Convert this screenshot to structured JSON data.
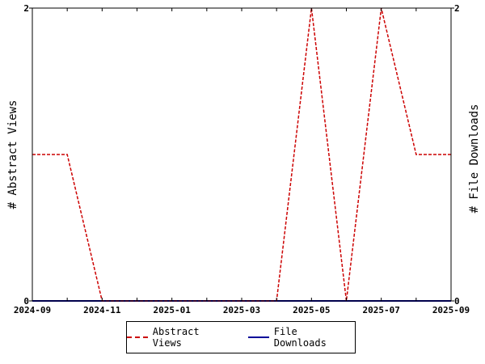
{
  "chart_data": {
    "type": "line",
    "x": [
      "2024-09",
      "2024-10",
      "2024-11",
      "2024-12",
      "2025-01",
      "2025-02",
      "2025-03",
      "2025-04",
      "2025-05",
      "2025-06",
      "2025-07",
      "2025-08",
      "2025-09"
    ],
    "x_tick_labels": [
      "2024-09",
      "2024-11",
      "2025-01",
      "2025-03",
      "2025-05",
      "2025-07",
      "2025-09"
    ],
    "series": [
      {
        "name": "Abstract Views",
        "values": [
          1,
          1,
          0,
          0,
          0,
          0,
          0,
          0,
          2,
          0,
          2,
          1,
          1
        ],
        "color": "#cc0000",
        "style": "dashed",
        "axis": "left"
      },
      {
        "name": "File Downloads",
        "values": [
          0,
          0,
          0,
          0,
          0,
          0,
          0,
          0,
          0,
          0,
          0,
          0,
          0
        ],
        "color": "#000099",
        "style": "solid",
        "axis": "right"
      }
    ],
    "ylabel": "# Abstract Views",
    "y2label": "# File Downloads",
    "ylim": [
      0,
      2
    ],
    "y2lim": [
      0,
      2
    ],
    "y_ticks": [
      "0",
      "2"
    ],
    "y2_ticks": [
      "0",
      "2"
    ],
    "grid": false,
    "legend_position": "bottom"
  }
}
